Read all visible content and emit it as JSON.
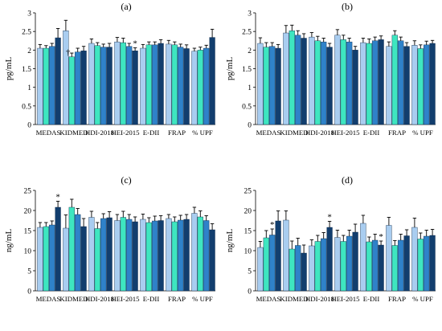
{
  "colors": [
    "#a9cdf0",
    "#3ee6c0",
    "#2f82c9",
    "#123e6e"
  ],
  "chart_data": [
    {
      "type": "bar",
      "title": "(a)",
      "ylabel": "pg/mL",
      "ylim": [
        0,
        3
      ],
      "yticks": [
        0,
        0.5,
        1,
        1.5,
        2,
        2.5,
        3
      ],
      "yticklabels": [
        "0",
        "0.5",
        "1",
        "1.5",
        "2",
        "2.5",
        "3"
      ],
      "categories": [
        "MEDAS",
        "KIDMED",
        "HDI-2018",
        "HEI-2015",
        "E-DII",
        "FRAP",
        "% UPF"
      ],
      "series": [
        {
          "values": [
            2.05,
            2.52,
            2.18,
            2.22,
            2.05,
            2.16,
            1.97
          ],
          "errors": [
            0.1,
            0.28,
            0.12,
            0.12,
            0.1,
            0.1,
            0.08
          ]
        },
        {
          "values": [
            2.05,
            1.82,
            2.12,
            2.2,
            2.14,
            2.14,
            2.0
          ],
          "errors": [
            0.07,
            0.1,
            0.08,
            0.12,
            0.08,
            0.08,
            0.08
          ]
        },
        {
          "values": [
            2.1,
            1.95,
            2.08,
            2.1,
            2.14,
            2.08,
            2.05
          ],
          "errors": [
            0.08,
            0.1,
            0.08,
            0.08,
            0.08,
            0.08,
            0.08
          ]
        },
        {
          "values": [
            2.33,
            1.98,
            2.08,
            1.98,
            2.18,
            2.04,
            2.34
          ],
          "errors": [
            0.25,
            0.12,
            0.1,
            0.08,
            0.1,
            0.1,
            0.22
          ]
        }
      ],
      "annotations": [
        {
          "category": 1,
          "series": 1,
          "text": "†"
        },
        {
          "category": 3,
          "series": 3,
          "text": "*"
        }
      ]
    },
    {
      "type": "bar",
      "title": "(b)",
      "ylabel": "pg/mL",
      "ylim": [
        0,
        3
      ],
      "yticks": [
        0,
        0.5,
        1,
        1.5,
        2,
        2.5,
        3
      ],
      "yticklabels": [
        "0",
        "0.5",
        "1",
        "1.5",
        "2",
        "2.5",
        "3"
      ],
      "categories": [
        "MEDAS",
        "KIDMED",
        "HDI-2018",
        "HEI-2015",
        "E-DII",
        "FRAP",
        "% UPF"
      ],
      "series": [
        {
          "values": [
            2.18,
            2.46,
            2.35,
            2.4,
            2.2,
            2.1,
            2.13
          ],
          "errors": [
            0.15,
            0.2,
            0.12,
            0.15,
            0.12,
            0.12,
            0.12
          ]
        },
        {
          "values": [
            2.08,
            2.52,
            2.25,
            2.28,
            2.18,
            2.4,
            2.04
          ],
          "errors": [
            0.12,
            0.15,
            0.12,
            0.12,
            0.12,
            0.12,
            0.1
          ]
        },
        {
          "values": [
            2.1,
            2.4,
            2.22,
            2.22,
            2.25,
            2.25,
            2.14
          ],
          "errors": [
            0.1,
            0.12,
            0.1,
            0.1,
            0.1,
            0.1,
            0.1
          ]
        },
        {
          "values": [
            2.05,
            2.32,
            2.08,
            2.0,
            2.28,
            2.1,
            2.18
          ],
          "errors": [
            0.1,
            0.12,
            0.1,
            0.1,
            0.1,
            0.1,
            0.08
          ]
        }
      ],
      "annotations": []
    },
    {
      "type": "bar",
      "title": "(c)",
      "ylabel": "ng/mL",
      "ylim": [
        0,
        25
      ],
      "yticks": [
        0,
        5,
        10,
        15,
        20,
        25
      ],
      "yticklabels": [
        "0",
        "5",
        "10",
        "15",
        "20",
        "25"
      ],
      "categories": [
        "MEDAS",
        "KIDMED",
        "HDI-2018",
        "HEI-2015",
        "E-DII",
        "FRAP",
        "% UPF"
      ],
      "series": [
        {
          "values": [
            15.8,
            15.6,
            18.3,
            17.5,
            17.8,
            18.0,
            19.3
          ],
          "errors": [
            1.2,
            3.3,
            1.5,
            1.5,
            1.3,
            1.0,
            1.5
          ]
        },
        {
          "values": [
            16.0,
            20.8,
            15.5,
            18.3,
            17.0,
            17.2,
            18.4
          ],
          "errors": [
            1.0,
            2.0,
            1.5,
            1.5,
            1.2,
            1.2,
            1.5
          ]
        },
        {
          "values": [
            16.4,
            19.0,
            18.0,
            17.8,
            17.4,
            17.6,
            17.5
          ],
          "errors": [
            1.0,
            1.5,
            1.2,
            1.2,
            1.2,
            1.2,
            1.2
          ]
        },
        {
          "values": [
            20.8,
            16.0,
            18.2,
            17.2,
            17.5,
            17.8,
            15.2
          ],
          "errors": [
            1.5,
            2.0,
            1.5,
            1.2,
            1.2,
            1.2,
            1.5
          ]
        }
      ],
      "annotations": [
        {
          "category": 0,
          "series": 3,
          "text": "*"
        }
      ]
    },
    {
      "type": "bar",
      "title": "(d)",
      "ylabel": "ng/mL",
      "ylim": [
        0,
        25
      ],
      "yticks": [
        0,
        5,
        10,
        15,
        20,
        25
      ],
      "yticklabels": [
        "0",
        "5",
        "10",
        "15",
        "20",
        "25"
      ],
      "categories": [
        "MEDAS",
        "KIDMED",
        "HDI-2018",
        "HEI-2015",
        "E-DII",
        "FRAP",
        "% UPF"
      ],
      "series": [
        {
          "values": [
            10.8,
            17.6,
            11.2,
            13.3,
            16.8,
            16.3,
            15.8
          ],
          "errors": [
            1.5,
            2.3,
            1.5,
            1.8,
            2.0,
            2.0,
            2.3
          ]
        },
        {
          "values": [
            13.2,
            10.4,
            12.3,
            12.3,
            12.2,
            11.3,
            12.9
          ],
          "errors": [
            1.8,
            2.0,
            1.5,
            1.5,
            1.2,
            1.2,
            1.5
          ]
        },
        {
          "values": [
            13.9,
            11.3,
            13.0,
            13.6,
            12.6,
            12.6,
            13.6
          ],
          "errors": [
            1.5,
            1.8,
            1.5,
            1.5,
            1.5,
            1.5,
            1.5
          ]
        },
        {
          "values": [
            17.4,
            9.4,
            15.8,
            14.6,
            11.4,
            13.7,
            13.8
          ],
          "errors": [
            2.5,
            2.0,
            1.5,
            2.0,
            1.0,
            1.5,
            1.5
          ]
        }
      ],
      "annotations": [
        {
          "category": 0,
          "series": 2,
          "text": "*"
        },
        {
          "category": 2,
          "series": 3,
          "text": "*"
        },
        {
          "category": 4,
          "series": 3,
          "text": "*"
        }
      ]
    }
  ]
}
